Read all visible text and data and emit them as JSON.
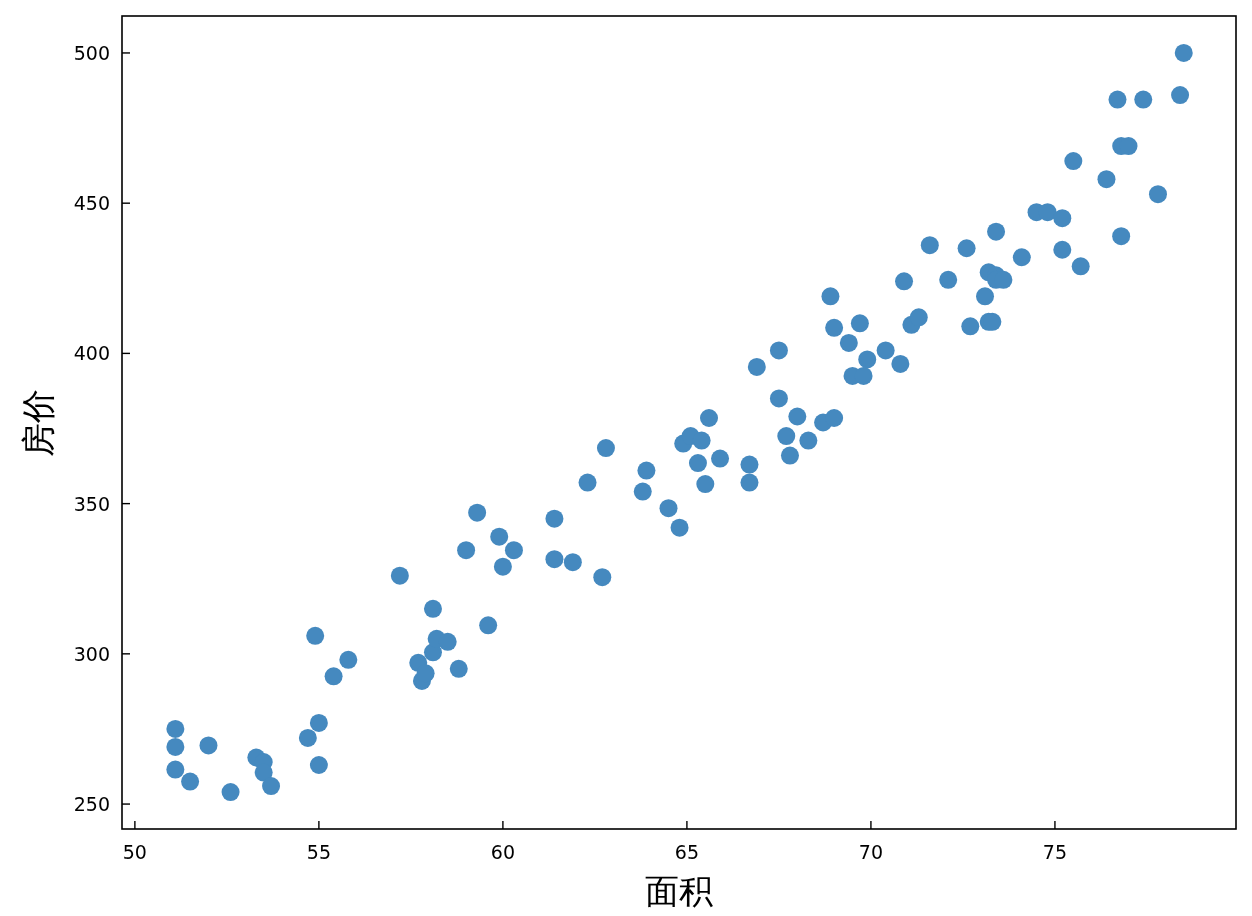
{
  "chart_data": {
    "type": "scatter",
    "xlabel": "面积",
    "ylabel": "房价",
    "color": "#4589bf",
    "marker": "circle",
    "xlim": [
      49.65,
      79.92
    ],
    "ylim": [
      241.7,
      512.3
    ],
    "xticks": [
      50,
      55,
      60,
      65,
      70,
      75
    ],
    "yticks": [
      250,
      300,
      350,
      400,
      450,
      500
    ],
    "x": [
      51.1,
      51.1,
      51.1,
      51.5,
      52.0,
      52.6,
      53.3,
      53.5,
      53.5,
      53.7,
      54.7,
      54.9,
      55.0,
      55.0,
      55.4,
      55.8,
      57.2,
      57.7,
      57.8,
      57.9,
      58.1,
      58.1,
      58.2,
      58.5,
      58.8,
      59.0,
      59.3,
      59.6,
      59.9,
      60.0,
      60.3,
      61.4,
      61.4,
      61.9,
      62.3,
      62.7,
      62.8,
      63.8,
      63.9,
      64.5,
      64.8,
      64.9,
      65.1,
      65.3,
      65.4,
      65.5,
      65.6,
      65.9,
      66.7,
      66.7,
      66.9,
      67.5,
      67.5,
      67.7,
      67.8,
      68.0,
      68.3,
      68.7,
      68.9,
      69.0,
      69.0,
      69.4,
      69.5,
      69.7,
      69.8,
      69.9,
      70.4,
      70.8,
      70.9,
      71.1,
      71.3,
      71.6,
      72.1,
      72.6,
      72.7,
      73.1,
      73.2,
      73.2,
      73.3,
      73.4,
      73.4,
      73.4,
      73.6,
      74.1,
      74.5,
      74.8,
      75.2,
      75.2,
      75.5,
      75.7,
      76.4,
      76.7,
      76.8,
      76.8,
      77.0,
      77.4,
      77.8,
      78.4,
      78.5
    ],
    "values": [
      275,
      269,
      261.5,
      257.5,
      269.5,
      254,
      265.5,
      264,
      260.5,
      256,
      272,
      306,
      277,
      263,
      292.5,
      298,
      326,
      297,
      291,
      293.5,
      300.5,
      315,
      305,
      304,
      295,
      334.5,
      347,
      309.5,
      339,
      329,
      334.5,
      345,
      331.5,
      330.5,
      357,
      325.5,
      368.5,
      354,
      361,
      348.5,
      342,
      370,
      372.5,
      363.5,
      371,
      356.5,
      378.5,
      365,
      363,
      357,
      395.5,
      385,
      401,
      372.5,
      366,
      379,
      371,
      377,
      419,
      378.5,
      408.5,
      403.5,
      392.5,
      410,
      392.5,
      398,
      401,
      396.5,
      424,
      409.5,
      412,
      436,
      424.5,
      435,
      409,
      419,
      427,
      410.5,
      410.5,
      426,
      440.5,
      424.5,
      424.5,
      432,
      447,
      447,
      445,
      434.5,
      464,
      429,
      458,
      484.5,
      469,
      439,
      469,
      484.5,
      453,
      486,
      500
    ]
  }
}
